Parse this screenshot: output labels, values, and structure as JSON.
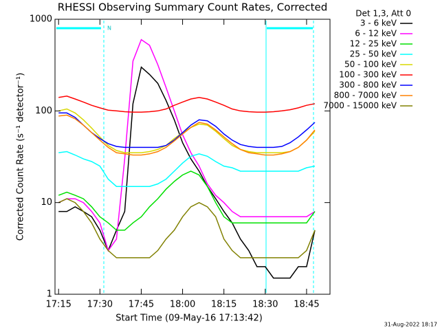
{
  "chart_data": {
    "type": "line",
    "title": "RHESSI Observing Summary Count Rates, Corrected",
    "x_label": "Start Time (09-May-16 17:13:42)",
    "y_label": "Corrected Count Rate (s⁻¹ detector⁻¹)",
    "legend_title": "Det 1,3, Att 0",
    "legend": "top-right",
    "flag_label": "N",
    "footer": "31-Aug-2022 18:17",
    "y_log": true,
    "xlim": [
      1033.7,
      1133.5
    ],
    "ylim": [
      1,
      1000
    ],
    "xticks": [
      {
        "value": 1035,
        "label": "17:15"
      },
      {
        "value": 1050,
        "label": "17:30"
      },
      {
        "value": 1065,
        "label": "17:45"
      },
      {
        "value": 1080,
        "label": "18:00"
      },
      {
        "value": 1095,
        "label": "18:15"
      },
      {
        "value": 1110,
        "label": "18:30"
      },
      {
        "value": 1125,
        "label": "18:45"
      }
    ],
    "yticks": [
      1,
      10,
      100,
      1000
    ],
    "x": [
      1035,
      1038,
      1041,
      1044,
      1047,
      1050,
      1053,
      1056,
      1059,
      1062,
      1065,
      1068,
      1071,
      1074,
      1077,
      1080,
      1083,
      1086,
      1089,
      1092,
      1095,
      1098,
      1101,
      1104,
      1107,
      1110,
      1113,
      1116,
      1119,
      1122,
      1125,
      1128
    ],
    "series": [
      {
        "name": "3 - 6 keV",
        "color": "#000000",
        "values": [
          8,
          8,
          9,
          8,
          7,
          5,
          3,
          5,
          8,
          120,
          300,
          250,
          200,
          130,
          80,
          45,
          30,
          22,
          15,
          11,
          8,
          6,
          4,
          3,
          2,
          2,
          1.5,
          1.5,
          1.5,
          2,
          2,
          5
        ]
      },
      {
        "name": "6 - 12 keV",
        "color": "#ff00ff",
        "values": [
          10,
          11,
          11,
          10,
          8,
          6,
          3,
          4,
          30,
          350,
          600,
          520,
          320,
          180,
          100,
          55,
          35,
          25,
          16,
          12,
          10,
          8,
          7,
          7,
          7,
          7,
          7,
          7,
          7,
          7,
          7,
          8
        ]
      },
      {
        "name": "12 - 25 keV",
        "color": "#00e000",
        "values": [
          12,
          13,
          12,
          11,
          9,
          7,
          6,
          5,
          5,
          6,
          7,
          9,
          11,
          14,
          17,
          20,
          22,
          20,
          15,
          10,
          7,
          6,
          6,
          6,
          6,
          6,
          6,
          6,
          6,
          6,
          6,
          8
        ]
      },
      {
        "name": "25 - 50 keV",
        "color": "#00ffff",
        "values": [
          35,
          36,
          33,
          30,
          28,
          25,
          18,
          15,
          15,
          15,
          15,
          15,
          16,
          18,
          22,
          27,
          32,
          34,
          32,
          28,
          25,
          24,
          22,
          22,
          22,
          22,
          22,
          22,
          22,
          22,
          24,
          25
        ]
      },
      {
        "name": "50 - 100 keV",
        "color": "#d8d800",
        "values": [
          100,
          105,
          95,
          80,
          65,
          52,
          42,
          37,
          35,
          35,
          35,
          36,
          38,
          42,
          50,
          58,
          66,
          72,
          70,
          60,
          50,
          42,
          38,
          36,
          35,
          35,
          35,
          35,
          36,
          40,
          48,
          60
        ]
      },
      {
        "name": "100 - 300 keV",
        "color": "#ff0000",
        "values": [
          140,
          145,
          135,
          125,
          115,
          108,
          102,
          100,
          98,
          97,
          97,
          98,
          100,
          105,
          115,
          125,
          135,
          140,
          135,
          125,
          115,
          105,
          100,
          98,
          97,
          97,
          98,
          100,
          103,
          108,
          115,
          120
        ]
      },
      {
        "name": "300 - 800 keV",
        "color": "#0000ff",
        "values": [
          95,
          95,
          85,
          70,
          58,
          50,
          44,
          41,
          40,
          40,
          40,
          40,
          40,
          42,
          48,
          58,
          70,
          80,
          78,
          68,
          56,
          48,
          43,
          41,
          40,
          40,
          40,
          41,
          45,
          52,
          62,
          75
        ]
      },
      {
        "name": "800 - 7000 keV",
        "color": "#ff8000",
        "values": [
          88,
          90,
          82,
          70,
          58,
          48,
          40,
          35,
          34,
          33,
          33,
          34,
          36,
          40,
          47,
          56,
          66,
          75,
          72,
          62,
          52,
          44,
          38,
          35,
          34,
          33,
          33,
          34,
          36,
          40,
          48,
          62
        ]
      },
      {
        "name": "7000 - 15000 keV",
        "color": "#808000",
        "values": [
          10,
          11,
          10,
          8,
          6,
          4,
          3,
          2.5,
          2.5,
          2.5,
          2.5,
          2.5,
          3,
          4,
          5,
          7,
          9,
          10,
          9,
          7,
          4,
          3,
          2.5,
          2.5,
          2.5,
          2.5,
          2.5,
          2.5,
          2.5,
          2.5,
          3,
          5
        ]
      }
    ]
  }
}
